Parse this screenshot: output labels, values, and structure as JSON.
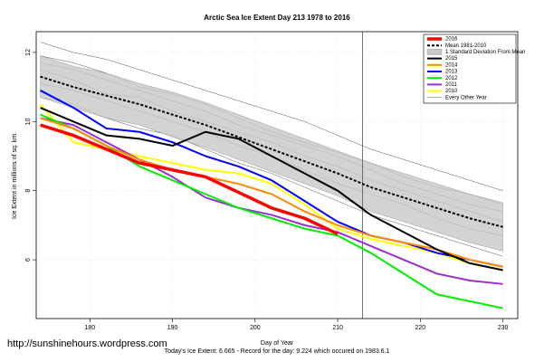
{
  "chart_data": {
    "type": "line",
    "title": "Arctic Sea Ice Extent Day 213 1978 to 2016",
    "x_label": "Day of Year",
    "y_label": "Ice Extent in millions of sq. km.",
    "footnote": "Today's Ice Extent: 6.665 - Record for the day: 9.224 which occured on 1983.6.1",
    "watermark": "http://sunshinehours.wordpress.com",
    "x": [
      174,
      178,
      182,
      186,
      190,
      194,
      198,
      202,
      206,
      210,
      214,
      218,
      222,
      226,
      230
    ],
    "xlim": [
      173.5,
      231.8
    ],
    "ylim": [
      4.3,
      12.6
    ],
    "xticks": [
      180,
      190,
      200,
      210,
      220,
      230
    ],
    "yticks": [
      6,
      8,
      10,
      12
    ],
    "grid": true,
    "vline": 213,
    "legend": "top-right",
    "series": [
      {
        "name": "2016",
        "color": "#ff0000",
        "values": [
          9.9,
          9.6,
          9.2,
          8.8,
          8.6,
          8.4,
          7.95,
          7.5,
          7.2,
          6.75,
          null,
          null,
          null,
          null,
          null
        ]
      },
      {
        "name": "Mean 1981-2010",
        "color": "#000000",
        "dashed": true,
        "values": [
          11.3,
          11.0,
          10.75,
          10.5,
          10.2,
          9.9,
          9.55,
          9.2,
          8.85,
          8.5,
          8.1,
          7.8,
          7.5,
          7.2,
          6.95
        ]
      },
      {
        "name": "2015",
        "color": "#000000",
        "values": [
          10.4,
          10.0,
          9.6,
          9.5,
          9.3,
          9.7,
          9.5,
          9.0,
          8.5,
          8.0,
          7.3,
          6.8,
          6.3,
          5.9,
          5.7
        ]
      },
      {
        "name": "2014",
        "color": "#ff8c00",
        "values": [
          10.1,
          9.8,
          9.3,
          8.9,
          8.6,
          8.4,
          8.2,
          7.9,
          7.4,
          7.0,
          6.7,
          6.5,
          6.3,
          6.0,
          5.8
        ]
      },
      {
        "name": "2013",
        "color": "#0000ff",
        "values": [
          10.9,
          10.4,
          9.8,
          9.7,
          9.4,
          9.0,
          8.7,
          8.3,
          7.7,
          7.1,
          6.7,
          6.5,
          6.2,
          6.0,
          5.8
        ]
      },
      {
        "name": "2012",
        "color": "#00ee00",
        "values": [
          10.2,
          9.8,
          9.3,
          8.7,
          8.3,
          7.9,
          7.5,
          7.2,
          6.9,
          6.7,
          6.2,
          5.6,
          5.0,
          4.8,
          4.6
        ]
      },
      {
        "name": "2011",
        "color": "#9b30d0",
        "values": [
          10.1,
          9.9,
          9.4,
          8.9,
          8.4,
          7.8,
          7.5,
          7.3,
          7.0,
          6.8,
          6.4,
          6.0,
          5.6,
          5.4,
          5.3
        ]
      },
      {
        "name": "2010",
        "color": "#ffff00",
        "values": [
          10.5,
          9.4,
          9.2,
          9.0,
          8.8,
          8.6,
          8.5,
          8.2,
          7.6,
          6.9,
          6.6,
          6.4,
          6.2,
          5.9,
          5.7
        ]
      }
    ],
    "band": {
      "name": "1 Standard Deviation From Mean",
      "color": "#c8c8c8",
      "upper": [
        11.9,
        11.6,
        11.4,
        11.1,
        10.85,
        10.55,
        10.2,
        9.85,
        9.5,
        9.15,
        8.8,
        8.5,
        8.2,
        7.9,
        7.65
      ],
      "lower": [
        10.7,
        10.4,
        10.1,
        9.9,
        9.55,
        9.25,
        8.9,
        8.55,
        8.2,
        7.85,
        7.4,
        7.1,
        6.8,
        6.5,
        6.25
      ]
    },
    "background": {
      "name": "Every Other Year",
      "color": "#555555",
      "lines": [
        [
          12.3,
          12.0,
          11.8,
          11.5,
          11.2,
          10.9,
          10.6,
          10.3,
          10.0,
          9.6,
          9.2,
          8.9,
          8.6,
          8.3,
          8.0
        ],
        [
          11.7,
          11.5,
          11.2,
          10.9,
          10.6,
          10.3,
          9.9,
          9.6,
          9.3,
          9.0,
          8.6,
          8.2,
          7.9,
          7.6,
          7.4
        ],
        [
          11.1,
          10.9,
          10.6,
          10.3,
          10.0,
          9.7,
          9.3,
          9.0,
          8.6,
          8.2,
          7.9,
          7.6,
          7.2,
          6.9,
          6.7
        ],
        [
          10.7,
          10.5,
          10.1,
          9.8,
          9.6,
          9.2,
          8.8,
          8.5,
          8.1,
          7.7,
          7.3,
          7.0,
          6.7,
          6.4,
          6.1
        ],
        [
          11.9,
          11.7,
          11.4,
          11.0,
          10.8,
          10.5,
          10.1,
          9.7,
          9.4,
          9.1,
          8.8,
          8.4,
          8.1,
          7.9,
          7.6
        ],
        [
          11.5,
          11.2,
          10.8,
          10.7,
          10.3,
          10.0,
          9.7,
          9.4,
          9.0,
          8.7,
          8.3,
          8.0,
          7.7,
          7.4,
          7.1
        ]
      ]
    }
  }
}
